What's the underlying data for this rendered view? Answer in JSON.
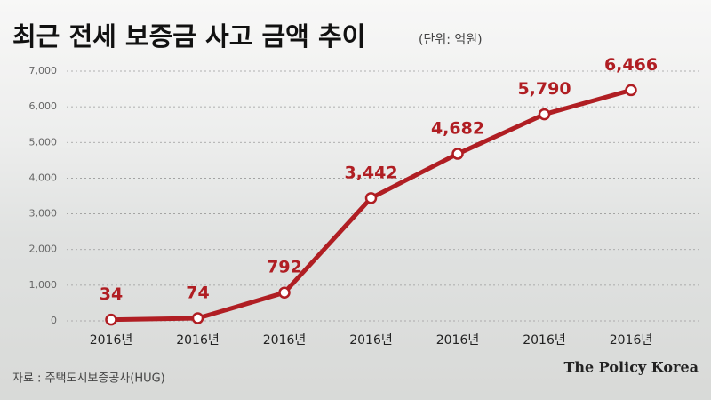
{
  "chart_data": {
    "type": "line",
    "title": "최근 전세 보증금 사고 금액 추이",
    "subtitle": "(단위: 억원)",
    "categories": [
      "2016년",
      "2016년",
      "2016년",
      "2016년",
      "2016년",
      "2016년",
      "2016년"
    ],
    "values": [
      34,
      74,
      792,
      3442,
      4682,
      5790,
      6466
    ],
    "value_labels": [
      "34",
      "74",
      "792",
      "3,442",
      "4,682",
      "5,790",
      "6,466"
    ],
    "color": "#b01e23",
    "ylim": [
      0,
      7000
    ],
    "yticks": [
      0,
      {
        "value": 1000,
        "label": "1,000"
      },
      {
        "value": 2000,
        "label": "2,000"
      },
      {
        "value": 3000,
        "label": "3,000"
      },
      {
        "value": 4000,
        "label": "4,000"
      },
      {
        "value": 5000,
        "label": "5,000"
      },
      {
        "value": 6000,
        "label": "6,000"
      },
      {
        "value": 7000,
        "label": "7,000"
      }
    ],
    "grid": true,
    "source": "자료 : 주택도시보증공사(HUG)",
    "credit": "The Policy Korea"
  }
}
